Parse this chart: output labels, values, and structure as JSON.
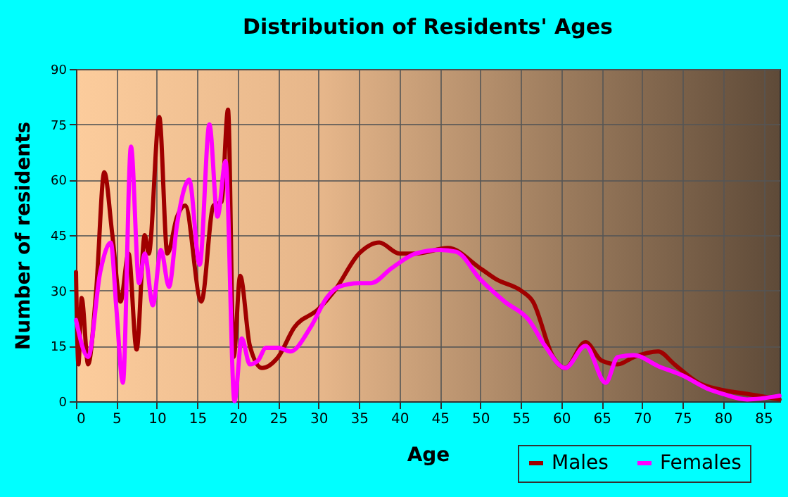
{
  "chart_data": {
    "type": "line",
    "title": "Distribution of Residents' Ages",
    "xlabel": "Age",
    "ylabel": "Number of residents",
    "xlim": [
      0,
      87
    ],
    "xticks": [
      0,
      5,
      10,
      15,
      20,
      25,
      30,
      35,
      40,
      45,
      50,
      55,
      60,
      65,
      70,
      75,
      80,
      85
    ],
    "ylim": [
      0,
      90
    ],
    "yticks": [
      0,
      15,
      30,
      45,
      60,
      75,
      90
    ],
    "grid": true,
    "legend": "bottom right",
    "marker": "none",
    "line_style": "solid",
    "series": [
      {
        "name": "Males",
        "color": "#a00000",
        "x": [
          0,
          0.3,
          0.7,
          1.5,
          2.5,
          3.5,
          4.5,
          5.5,
          6.5,
          7.5,
          8.5,
          9,
          10.3,
          11.3,
          12.5,
          13.5,
          15.5,
          17,
          18,
          18.8,
          19.5,
          20.3,
          21.5,
          23,
          25,
          27,
          30,
          32,
          35,
          37.5,
          40,
          42,
          46,
          50,
          52,
          55,
          56.5,
          59,
          60.5,
          63,
          65,
          67,
          69,
          72,
          74,
          77,
          80,
          83,
          87
        ],
        "values": [
          35,
          10,
          28,
          10,
          30,
          62,
          45,
          27,
          40,
          14,
          45,
          40,
          77,
          40,
          50,
          53,
          27,
          53,
          54,
          79,
          12,
          34,
          15,
          9,
          12,
          20,
          25,
          30,
          40,
          43,
          40,
          40,
          41.5,
          36,
          33,
          30,
          27,
          12,
          9,
          16,
          11,
          10,
          12,
          13.5,
          10,
          5,
          3,
          2,
          0.5
        ]
      },
      {
        "name": "Females",
        "color": "#ff00ff",
        "x": [
          0,
          1.5,
          3,
          4.3,
          5,
          5.8,
          6.8,
          7.8,
          8.5,
          9.5,
          10.5,
          11.5,
          12.5,
          14,
          15.3,
          16.5,
          17.5,
          18.5,
          19.6,
          20.5,
          21.5,
          22.5,
          23.5,
          25,
          26.5,
          29,
          31,
          32.5,
          35,
          36.5,
          39,
          42,
          45,
          47,
          50,
          53,
          56,
          58,
          60.5,
          63,
          65.5,
          67,
          69,
          72,
          75,
          78,
          80,
          83,
          87
        ],
        "values": [
          22,
          12,
          35,
          43,
          25,
          5,
          69,
          32,
          40,
          26,
          41,
          31,
          48,
          60,
          37,
          75,
          50,
          65,
          0,
          17,
          10,
          11,
          14.5,
          14.5,
          13.5,
          20,
          28,
          31,
          32,
          32,
          36,
          40,
          41,
          40.5,
          33,
          27,
          22,
          15,
          9,
          15,
          5,
          12,
          12.5,
          9.5,
          7,
          3.5,
          2,
          0.5,
          1.5
        ]
      }
    ]
  }
}
